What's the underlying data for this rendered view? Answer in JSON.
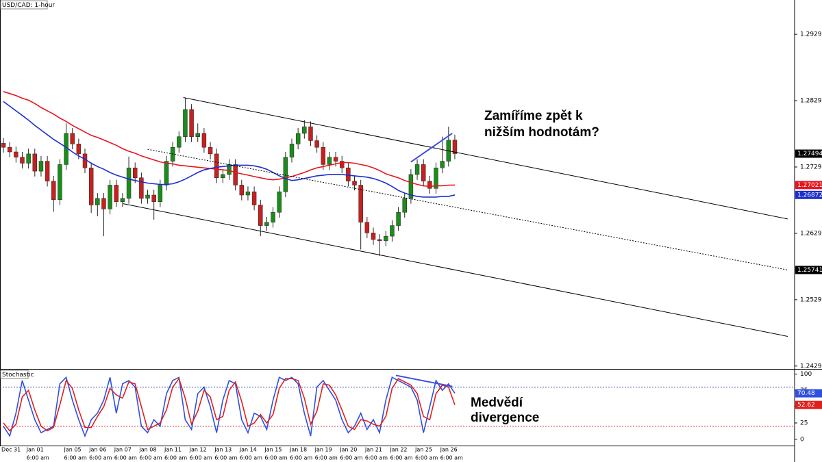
{
  "chart_data": [
    {
      "type": "candlestick",
      "title": "USD/CAD: 1-hour",
      "categories": [
        "Dec 31",
        null,
        null,
        null,
        "Jan 01",
        null,
        null,
        null,
        null,
        null,
        "Jan 05",
        null,
        null,
        null,
        "Jan 06",
        null,
        null,
        null,
        "Jan 07",
        null,
        null,
        null,
        "Jan 08",
        null,
        null,
        null,
        "Jan 11",
        null,
        null,
        null,
        "Jan 12",
        null,
        null,
        null,
        "Jan 13",
        null,
        null,
        null,
        "Jan 14",
        null,
        null,
        null,
        "Jan 15",
        null,
        null,
        null,
        "Jan 18",
        null,
        null,
        null,
        "Jan 19",
        null,
        null,
        null,
        "Jan 20",
        null,
        null,
        null,
        "Jan 21",
        null,
        null,
        null,
        "Jan 22",
        null,
        null,
        null,
        "Jan 25",
        null,
        null,
        null,
        "Jan 26",
        null,
        null
      ],
      "time_labels": [
        null,
        null,
        null,
        null,
        "6:00 am",
        null,
        null,
        null,
        null,
        null,
        "6:00 am",
        null,
        null,
        null,
        "6:00 am",
        null,
        null,
        null,
        "6:00 am",
        null,
        null,
        null,
        "6:00 am",
        null,
        null,
        null,
        "6:00 am",
        null,
        null,
        null,
        "6:00 am",
        null,
        null,
        null,
        "6:00 am",
        null,
        null,
        null,
        "6:00 am",
        null,
        null,
        null,
        "6:00 am",
        null,
        null,
        null,
        "6:00 am",
        null,
        null,
        null,
        "6:00 am",
        null,
        null,
        null,
        "6:00 am",
        null,
        null,
        null,
        "6:00 am",
        null,
        null,
        null,
        "6:00 am",
        null,
        null,
        null,
        "6:00 am",
        null,
        null,
        null,
        "6:00 am",
        null,
        null
      ],
      "open": [
        1.2765,
        1.2759,
        1.2752,
        1.2744,
        1.2735,
        1.2749,
        1.2723,
        1.2738,
        1.2708,
        1.268,
        1.2733,
        1.278,
        1.2764,
        1.2749,
        1.2728,
        1.2672,
        1.2682,
        1.2666,
        1.2702,
        1.2677,
        1.2682,
        1.2728,
        1.2713,
        1.2682,
        1.2687,
        1.2677,
        1.2702,
        1.2738,
        1.2759,
        1.2775,
        1.2816,
        1.2775,
        1.278,
        1.2759,
        1.2749,
        1.2713,
        1.2718,
        1.2733,
        1.2702,
        1.2687,
        1.2692,
        1.2672,
        1.2641,
        1.2646,
        1.2661,
        1.2692,
        1.2744,
        1.2764,
        1.278,
        1.279,
        1.2769,
        1.2759,
        1.2733,
        1.2744,
        1.2738,
        1.2728,
        1.2708,
        1.2702,
        1.2646,
        1.263,
        1.262,
        1.2618,
        1.2625,
        1.2641,
        1.2661,
        1.2682,
        1.2718,
        1.2733,
        1.2708,
        1.2697,
        1.2728,
        1.2738,
        1.277
      ],
      "high": [
        1.2773,
        1.2767,
        1.276,
        1.2752,
        1.2757,
        1.2757,
        1.2746,
        1.2746,
        1.2716,
        1.2741,
        1.2795,
        1.2788,
        1.2772,
        1.2757,
        1.2736,
        1.269,
        1.269,
        1.271,
        1.271,
        1.269,
        1.2745,
        1.2736,
        1.2721,
        1.2695,
        1.2695,
        1.271,
        1.2746,
        1.2767,
        1.2783,
        1.2834,
        1.2824,
        1.2795,
        1.2788,
        1.2767,
        1.2757,
        1.2726,
        1.2741,
        1.2741,
        1.271,
        1.27,
        1.27,
        1.268,
        1.2654,
        1.2669,
        1.27,
        1.2752,
        1.2772,
        1.2788,
        1.28,
        1.2798,
        1.2777,
        1.2767,
        1.2752,
        1.2752,
        1.2746,
        1.2736,
        1.2716,
        1.271,
        1.2654,
        1.2638,
        1.2628,
        1.2633,
        1.2649,
        1.2669,
        1.269,
        1.2726,
        1.2741,
        1.2741,
        1.2716,
        1.2736,
        1.2775,
        1.279,
        1.2778
      ],
      "low": [
        1.2751,
        1.2744,
        1.2736,
        1.2727,
        1.2727,
        1.2715,
        1.2715,
        1.27,
        1.2662,
        1.2672,
        1.2725,
        1.2756,
        1.2741,
        1.272,
        1.266,
        1.2655,
        1.2625,
        1.2658,
        1.2669,
        1.2669,
        1.2674,
        1.2705,
        1.2674,
        1.2674,
        1.265,
        1.2669,
        1.2694,
        1.273,
        1.2751,
        1.2767,
        1.2767,
        1.2767,
        1.2751,
        1.2741,
        1.2705,
        1.2705,
        1.271,
        1.2694,
        1.2679,
        1.2679,
        1.2664,
        1.2625,
        1.2633,
        1.2638,
        1.2653,
        1.2684,
        1.2736,
        1.2756,
        1.2772,
        1.2761,
        1.2751,
        1.2725,
        1.2725,
        1.273,
        1.272,
        1.27,
        1.2694,
        1.2605,
        1.2622,
        1.2612,
        1.2595,
        1.261,
        1.2617,
        1.2633,
        1.2653,
        1.2674,
        1.271,
        1.27,
        1.2689,
        1.2689,
        1.272,
        1.273,
        1.2741
      ],
      "close": [
        1.2759,
        1.2752,
        1.2744,
        1.2735,
        1.2749,
        1.2723,
        1.2738,
        1.2708,
        1.268,
        1.2733,
        1.278,
        1.2764,
        1.2749,
        1.2728,
        1.2672,
        1.2682,
        1.2666,
        1.2702,
        1.2677,
        1.2682,
        1.2728,
        1.2713,
        1.2682,
        1.2687,
        1.2677,
        1.2702,
        1.2738,
        1.2759,
        1.2775,
        1.2816,
        1.2775,
        1.278,
        1.2759,
        1.2749,
        1.2713,
        1.2718,
        1.2733,
        1.2702,
        1.2687,
        1.2692,
        1.2672,
        1.2641,
        1.2646,
        1.2661,
        1.2692,
        1.2744,
        1.2764,
        1.278,
        1.279,
        1.2769,
        1.2759,
        1.2733,
        1.2744,
        1.2738,
        1.2728,
        1.2708,
        1.2702,
        1.2646,
        1.263,
        1.262,
        1.2618,
        1.2625,
        1.2641,
        1.2661,
        1.2682,
        1.2718,
        1.2733,
        1.2708,
        1.2697,
        1.2728,
        1.2738,
        1.277,
        1.27494
      ],
      "up_color": "#1b8c1b",
      "down_color": "#c8201f",
      "overlays": [
        {
          "color": "#e8141c",
          "values": [
            1.2843,
            1.284,
            1.2837,
            1.2833,
            1.283,
            1.2825,
            1.2819,
            1.2814,
            1.2809,
            1.2803,
            1.2798,
            1.2792,
            1.2787,
            1.2782,
            1.2777,
            1.2774,
            1.277,
            1.2766,
            1.2762,
            1.2757,
            1.2753,
            1.275,
            1.2746,
            1.2743,
            1.274,
            1.2737,
            1.2735,
            1.2734,
            1.2732,
            1.2731,
            1.273,
            1.2729,
            1.2728,
            1.2727,
            1.2726,
            1.2725,
            1.2724,
            1.2721,
            1.2719,
            1.2717,
            1.2715,
            1.2713,
            1.2711,
            1.271,
            1.2711,
            1.2713,
            1.2715,
            1.2718,
            1.2721,
            1.2725,
            1.2728,
            1.273,
            1.2732,
            1.2734,
            1.2736,
            1.2736,
            1.2735,
            1.2733,
            1.2731,
            1.2728,
            1.2724,
            1.2719,
            1.2716,
            1.2713,
            1.2709,
            1.2706,
            1.2703,
            1.2701,
            1.27,
            1.2701,
            1.2701,
            1.2702,
            1.27021
          ]
        },
        {
          "color": "#1b2fd0",
          "values": [
            1.2828,
            1.2821,
            1.2814,
            1.2807,
            1.28,
            1.2792,
            1.2785,
            1.2778,
            1.2771,
            1.2765,
            1.2759,
            1.2752,
            1.2746,
            1.2741,
            1.2735,
            1.273,
            1.2726,
            1.2721,
            1.2717,
            1.2714,
            1.2711,
            1.2709,
            1.2707,
            1.2705,
            1.2704,
            1.2703,
            1.2703,
            1.2704,
            1.2707,
            1.2711,
            1.2716,
            1.2721,
            1.2725,
            1.2727,
            1.2729,
            1.273,
            1.2731,
            1.2732,
            1.2732,
            1.2732,
            1.2731,
            1.2729,
            1.2726,
            1.2721,
            1.2716,
            1.2712,
            1.2709,
            1.271,
            1.2712,
            1.2714,
            1.2716,
            1.2717,
            1.2718,
            1.2718,
            1.2718,
            1.2717,
            1.2716,
            1.2715,
            1.2714,
            1.2712,
            1.2709,
            1.2705,
            1.27,
            1.2694,
            1.269,
            1.2687,
            1.2685,
            1.2684,
            1.2684,
            1.2684,
            1.2685,
            1.2685,
            1.26872
          ]
        }
      ],
      "trend_lines": [
        {
          "x": [
            28.7,
            125.1
          ],
          "y": [
            1.2834,
            1.2651
          ],
          "color": "#000000",
          "dashed": false
        },
        {
          "x": [
            23.0,
            125.1
          ],
          "y": [
            1.2756,
            1.25741
          ],
          "color": "#000000",
          "dashed": true
        },
        {
          "x": [
            19.1,
            125.1
          ],
          "y": [
            1.2674,
            1.2474
          ],
          "color": "#000000",
          "dashed": false
        },
        {
          "x": [
            65.0,
            71.6
          ],
          "y": [
            1.2737,
            1.278
          ],
          "color": "#3b4fe0",
          "dashed": false
        }
      ],
      "xlim": [
        -0.55,
        126.2
      ],
      "ylim": [
        1.2426,
        1.2981
      ],
      "yticks": [
        1.24293,
        1.25293,
        1.26293,
        1.27293,
        1.28293,
        1.29293
      ],
      "annotations": [
        "Zamíříme zpět k",
        "nižším hodnotám?"
      ]
    },
    {
      "type": "line",
      "title": "Stochastic",
      "series": [
        {
          "color": "#2f4fe0",
          "values": [
            20,
            5,
            40,
            90,
            60,
            30,
            10,
            15,
            20,
            85,
            95,
            60,
            30,
            5,
            30,
            40,
            60,
            95,
            40,
            85,
            90,
            80,
            20,
            10,
            30,
            20,
            70,
            90,
            95,
            30,
            15,
            70,
            80,
            50,
            10,
            60,
            90,
            85,
            30,
            10,
            40,
            35,
            15,
            60,
            95,
            90,
            95,
            85,
            40,
            5,
            80,
            90,
            75,
            60,
            30,
            10,
            20,
            40,
            15,
            30,
            10,
            60,
            95,
            90,
            85,
            80,
            60,
            10,
            50,
            90,
            75,
            85,
            70.48
          ]
        },
        {
          "color": "#e0201c",
          "values": [
            25,
            13,
            23,
            65,
            75,
            45,
            20,
            13,
            18,
            53,
            90,
            78,
            45,
            18,
            18,
            35,
            50,
            78,
            68,
            63,
            88,
            85,
            50,
            15,
            20,
            25,
            45,
            80,
            93,
            63,
            23,
            43,
            75,
            65,
            30,
            35,
            75,
            88,
            58,
            20,
            25,
            38,
            25,
            38,
            78,
            93,
            93,
            90,
            63,
            23,
            43,
            85,
            83,
            68,
            45,
            20,
            15,
            30,
            28,
            23,
            20,
            35,
            78,
            93,
            88,
            83,
            70,
            35,
            30,
            70,
            83,
            80,
            52.62
          ]
        }
      ],
      "levels": [
        {
          "value": 80,
          "color": "#3344cc"
        },
        {
          "value": 20,
          "color": "#e02020"
        }
      ],
      "trend_lines": [
        {
          "x": [
            62.6,
            71.6
          ],
          "y": [
            98,
            81
          ],
          "color": "#3b4fe0",
          "dashed": false
        }
      ],
      "xlim": [
        -0.55,
        126.2
      ],
      "ylim": [
        -9.7,
        105.8
      ],
      "yticks": [
        0,
        25,
        50,
        75,
        100
      ],
      "annotations": [
        "Medvědí",
        "divergence"
      ]
    }
  ]
}
